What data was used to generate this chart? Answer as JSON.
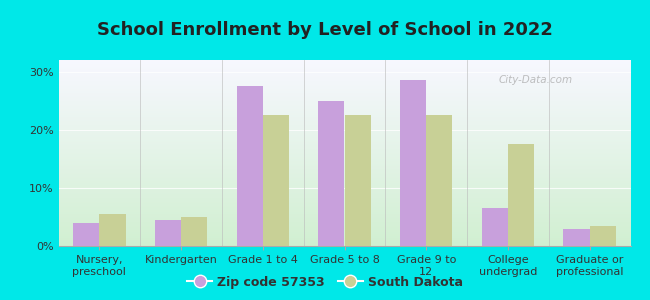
{
  "title": "School Enrollment by Level of School in 2022",
  "categories": [
    "Nursery,\npreschool",
    "Kindergarten",
    "Grade 1 to 4",
    "Grade 5 to 8",
    "Grade 9 to\n12",
    "College\nundergrad",
    "Graduate or\nprofessional"
  ],
  "zip_values": [
    4.0,
    4.5,
    27.5,
    25.0,
    28.5,
    6.5,
    3.0
  ],
  "state_values": [
    5.5,
    5.0,
    22.5,
    22.5,
    22.5,
    17.5,
    3.5
  ],
  "zip_color": "#c8a0dc",
  "state_color": "#c8d096",
  "ylim": [
    0,
    32
  ],
  "yticks": [
    0,
    10,
    20,
    30
  ],
  "ytick_labels": [
    "0%",
    "10%",
    "20%",
    "30%"
  ],
  "legend_zip": "Zip code 57353",
  "legend_state": "South Dakota",
  "bg_color": "#00e8e8",
  "title_color": "#222222",
  "watermark": "City-Data.com",
  "title_fontsize": 13,
  "tick_fontsize": 8,
  "legend_fontsize": 9
}
